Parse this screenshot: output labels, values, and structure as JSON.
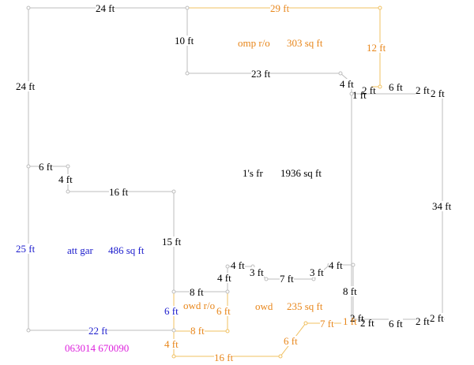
{
  "colors": {
    "line_gray": "#bdbdbd",
    "line_orange": "#f0c060",
    "black": "#000000",
    "orange": "#e8861a",
    "blue": "#1a1acc",
    "magenta": "#dd22dd"
  },
  "areas": {
    "omp": {
      "name": "omp r/o",
      "size": "303 sq ft"
    },
    "main": {
      "name": "1's fr",
      "size": "1936 sq ft"
    },
    "garage": {
      "name": "att gar",
      "size": "486 sq ft"
    },
    "owd_ro": {
      "name": "owd r/o"
    },
    "owd": {
      "name": "owd",
      "size": "235 sq ft"
    }
  },
  "stamp": "063014 670090",
  "dimensions": {
    "d1": "24 ft",
    "d2": "29 ft",
    "d3": "10 ft",
    "d4": "12 ft",
    "d5": "24 ft",
    "d6": "23 ft",
    "d7": "4 ft",
    "d8": "2 ft",
    "d9": "1 ft",
    "d10": "6 ft",
    "d11": "2 ft",
    "d12": "2 ft",
    "d13": "6 ft",
    "d14": "4 ft",
    "d15": "16 ft",
    "d16": "34 ft",
    "d17": "15 ft",
    "d18": "25 ft",
    "d19": "4 ft",
    "d20": "4 ft",
    "d21": "3 ft",
    "d22": "7 ft",
    "d23": "3 ft",
    "d24": "4 ft",
    "d25": "8 ft",
    "d26": "8 ft",
    "d27": "6 ft",
    "d28": "6 ft",
    "d29": "2 ft",
    "d30": "1 ft",
    "d31": "2 ft",
    "d32": "6 ft",
    "d33": "2 ft",
    "d34": "2 ft",
    "d35": "7 ft",
    "d36": "22 ft",
    "d37": "8 ft",
    "d38": "4 ft",
    "d39": "6 ft",
    "d40": "16 ft"
  }
}
